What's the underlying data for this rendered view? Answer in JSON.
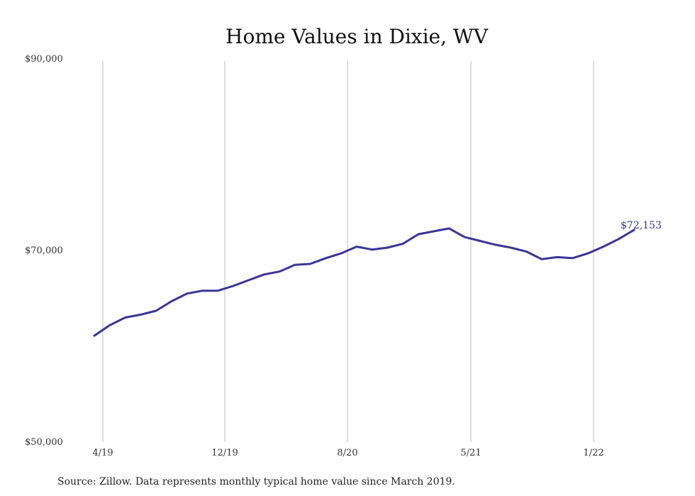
{
  "chart_data": {
    "type": "line",
    "title": "Home Values in Dixie, WV",
    "source": "Source: Zillow. Data represents monthly typical home value since March 2019.",
    "x_tick_labels": [
      "4/19",
      "12/19",
      "8/20",
      "5/21",
      "1/22"
    ],
    "y_tick_labels": [
      "$90,000",
      "$70,000",
      "$50,000"
    ],
    "y_ticks": [
      90000,
      70000,
      50000
    ],
    "ylim": [
      50000,
      90000
    ],
    "grid": "vertical lines at x ticks",
    "line_color": "#3a3596",
    "end_label": "$72,153",
    "series": [
      {
        "x": [
          "3/19",
          "4/19",
          "5/19",
          "6/19",
          "7/19",
          "8/19",
          "9/19",
          "10/19",
          "11/19",
          "12/19",
          "1/20",
          "2/20",
          "3/20",
          "4/20",
          "5/20",
          "6/20",
          "7/20",
          "8/20",
          "9/20",
          "10/20",
          "11/20",
          "12/20",
          "1/21",
          "2/21",
          "3/21",
          "4/21",
          "5/21",
          "6/21",
          "7/21",
          "8/21",
          "9/21",
          "10/21",
          "11/21",
          "12/21",
          "1/22",
          "2/22",
          "3/22"
        ],
        "values": [
          61100,
          62200,
          63000,
          63300,
          63700,
          64700,
          65500,
          65800,
          65800,
          66300,
          66900,
          67500,
          67800,
          68500,
          68600,
          69200,
          69700,
          70400,
          70100,
          70300,
          70700,
          71700,
          72000,
          72300,
          71400,
          71000,
          70600,
          70300,
          69900,
          69100,
          69300,
          69200,
          69700,
          70400,
          71200,
          72153,
          72153
        ]
      }
    ]
  }
}
